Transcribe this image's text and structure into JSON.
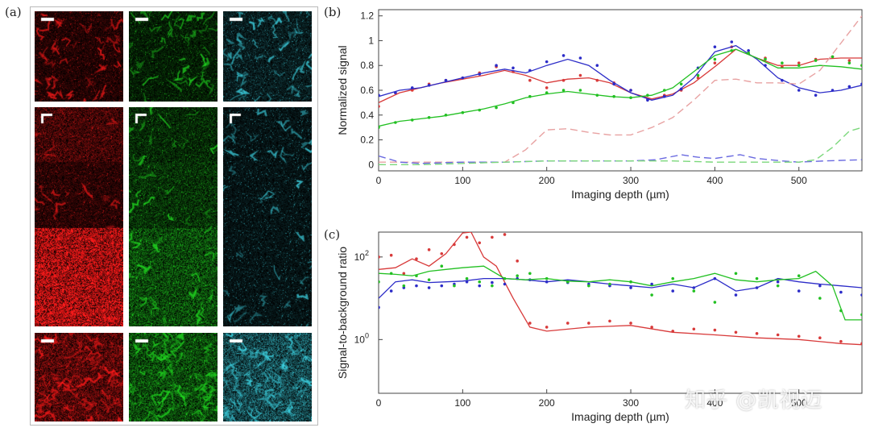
{
  "labels": {
    "a": "(a)",
    "b": "(b)",
    "c": "(c)"
  },
  "watermark": "知乎 @凯视迈",
  "image_panel": {
    "colors": {
      "red": "#ff1a1a",
      "green": "#22e022",
      "cyan": "#3fd8e8"
    }
  },
  "chart_data": [
    {
      "type": "line",
      "xlabel": "Imaging depth (µm)",
      "ylabel": "Normalized signal",
      "xlim": [
        0,
        575
      ],
      "ylim": [
        -0.05,
        1.25
      ],
      "xticks": [
        0,
        100,
        200,
        300,
        400,
        500
      ],
      "yticks": [
        0,
        0.2,
        0.4,
        0.6,
        0.8,
        1,
        1.2
      ],
      "ytick_labels": [
        "0",
        "0.2",
        "0.4",
        "0.6",
        "0.8",
        "1",
        "1.2"
      ],
      "grid": false,
      "series": [
        {
          "color": "#d83a3a",
          "style": "solid",
          "x": [
            0,
            25,
            50,
            75,
            100,
            125,
            150,
            175,
            200,
            225,
            250,
            275,
            300,
            325,
            350,
            375,
            400,
            425,
            450,
            475,
            500,
            525,
            550,
            575
          ],
          "y": [
            0.5,
            0.58,
            0.62,
            0.66,
            0.69,
            0.72,
            0.76,
            0.72,
            0.66,
            0.69,
            0.7,
            0.66,
            0.58,
            0.53,
            0.57,
            0.66,
            0.79,
            0.93,
            0.86,
            0.8,
            0.8,
            0.85,
            0.86,
            0.86
          ]
        },
        {
          "color": "#d83a3a",
          "style": "dots",
          "x": [
            0,
            20,
            40,
            60,
            80,
            100,
            120,
            140,
            160,
            180,
            200,
            220,
            240,
            260,
            280,
            300,
            320,
            340,
            360,
            380,
            400,
            420,
            440,
            460,
            480,
            500,
            520,
            540,
            560,
            575
          ],
          "y": [
            0.47,
            0.58,
            0.6,
            0.65,
            0.68,
            0.7,
            0.74,
            0.79,
            0.75,
            0.68,
            0.62,
            0.68,
            0.72,
            0.68,
            0.66,
            0.6,
            0.53,
            0.56,
            0.6,
            0.7,
            0.82,
            0.95,
            0.9,
            0.86,
            0.79,
            0.82,
            0.85,
            0.87,
            0.84,
            0.8
          ]
        },
        {
          "color": "#2c2cc8",
          "style": "solid",
          "x": [
            0,
            25,
            50,
            75,
            100,
            125,
            150,
            175,
            200,
            225,
            250,
            275,
            300,
            325,
            350,
            375,
            400,
            425,
            450,
            475,
            500,
            525,
            550,
            575
          ],
          "y": [
            0.55,
            0.6,
            0.62,
            0.66,
            0.7,
            0.74,
            0.77,
            0.74,
            0.8,
            0.85,
            0.8,
            0.68,
            0.58,
            0.52,
            0.56,
            0.7,
            0.91,
            0.96,
            0.85,
            0.7,
            0.62,
            0.58,
            0.6,
            0.64
          ]
        },
        {
          "color": "#2c2cc8",
          "style": "dots",
          "x": [
            0,
            20,
            40,
            60,
            80,
            100,
            120,
            140,
            160,
            180,
            200,
            220,
            240,
            260,
            280,
            300,
            320,
            340,
            360,
            380,
            400,
            420,
            440,
            460,
            480,
            500,
            520,
            540,
            560,
            575
          ],
          "y": [
            0.56,
            0.58,
            0.62,
            0.64,
            0.68,
            0.7,
            0.73,
            0.8,
            0.78,
            0.76,
            0.83,
            0.88,
            0.86,
            0.8,
            0.65,
            0.6,
            0.52,
            0.55,
            0.61,
            0.78,
            0.95,
            0.99,
            0.92,
            0.8,
            0.68,
            0.6,
            0.56,
            0.6,
            0.63,
            0.65
          ]
        },
        {
          "color": "#22c022",
          "style": "solid",
          "x": [
            0,
            25,
            50,
            75,
            100,
            125,
            150,
            175,
            200,
            225,
            250,
            275,
            300,
            325,
            350,
            375,
            400,
            425,
            450,
            475,
            500,
            525,
            550,
            575
          ],
          "y": [
            0.31,
            0.35,
            0.37,
            0.39,
            0.42,
            0.45,
            0.49,
            0.54,
            0.57,
            0.59,
            0.57,
            0.55,
            0.54,
            0.56,
            0.62,
            0.75,
            0.88,
            0.93,
            0.86,
            0.78,
            0.78,
            0.8,
            0.79,
            0.77
          ]
        },
        {
          "color": "#22c022",
          "style": "dots",
          "x": [
            0,
            20,
            40,
            60,
            80,
            100,
            120,
            140,
            160,
            180,
            200,
            220,
            240,
            260,
            280,
            300,
            320,
            340,
            360,
            380,
            400,
            420,
            440,
            460,
            480,
            500,
            520,
            540,
            560,
            575
          ],
          "y": [
            0.3,
            0.34,
            0.36,
            0.38,
            0.4,
            0.42,
            0.44,
            0.46,
            0.5,
            0.55,
            0.58,
            0.6,
            0.6,
            0.56,
            0.55,
            0.54,
            0.56,
            0.6,
            0.65,
            0.72,
            0.85,
            0.92,
            0.9,
            0.85,
            0.82,
            0.8,
            0.84,
            0.87,
            0.82,
            0.8
          ]
        },
        {
          "color": "#e8a2a2",
          "style": "dashed",
          "x": [
            0,
            50,
            100,
            150,
            175,
            200,
            225,
            250,
            275,
            300,
            325,
            350,
            375,
            400,
            425,
            450,
            475,
            500,
            525,
            550,
            575
          ],
          "y": [
            0.02,
            0.02,
            0.02,
            0.02,
            0.12,
            0.28,
            0.29,
            0.26,
            0.24,
            0.24,
            0.3,
            0.38,
            0.52,
            0.68,
            0.69,
            0.66,
            0.66,
            0.65,
            0.76,
            0.98,
            1.2
          ]
        },
        {
          "color": "#6a6ae0",
          "style": "dashed",
          "x": [
            0,
            25,
            50,
            100,
            150,
            200,
            250,
            300,
            330,
            360,
            380,
            400,
            430,
            450,
            480,
            500,
            530,
            575
          ],
          "y": [
            0.07,
            0.02,
            0.01,
            0.02,
            0.02,
            0.03,
            0.03,
            0.03,
            0.04,
            0.08,
            0.06,
            0.05,
            0.08,
            0.05,
            0.03,
            0.02,
            0.03,
            0.04
          ]
        },
        {
          "color": "#7cd87c",
          "style": "dashed",
          "x": [
            0,
            50,
            100,
            150,
            200,
            250,
            300,
            350,
            400,
            450,
            500,
            520,
            540,
            560,
            575
          ],
          "y": [
            0.0,
            0.0,
            0.01,
            0.02,
            0.03,
            0.03,
            0.03,
            0.03,
            0.02,
            0.02,
            0.02,
            0.04,
            0.14,
            0.27,
            0.3
          ]
        }
      ]
    },
    {
      "type": "line",
      "xlabel": "Imaging depth (µm)",
      "ylabel": "Signal-to-background ratio",
      "xlim": [
        0,
        575
      ],
      "ylim": [
        0.05,
        400
      ],
      "yscale": "log",
      "xticks": [
        0,
        100,
        200,
        300,
        400,
        500
      ],
      "yticks": [
        1,
        100
      ],
      "ytick_labels": [
        "10^0",
        "10^2"
      ],
      "grid": false,
      "series": [
        {
          "color": "#d83a3a",
          "style": "solid",
          "x": [
            0,
            20,
            40,
            60,
            80,
            100,
            110,
            125,
            140,
            160,
            180,
            200,
            250,
            300,
            350,
            400,
            450,
            500,
            550,
            575
          ],
          "y": [
            50,
            55,
            90,
            60,
            120,
            380,
            400,
            100,
            60,
            10,
            2.0,
            1.6,
            2.0,
            2.2,
            1.5,
            1.3,
            1.1,
            1.0,
            0.8,
            0.75
          ]
        },
        {
          "color": "#d83a3a",
          "style": "dots",
          "x": [
            0,
            15,
            30,
            45,
            60,
            75,
            90,
            105,
            120,
            135,
            150,
            165,
            180,
            200,
            225,
            250,
            275,
            300,
            325,
            350,
            375,
            400,
            425,
            450,
            475,
            500,
            525,
            550,
            575
          ],
          "y": [
            100,
            110,
            40,
            90,
            150,
            120,
            200,
            300,
            220,
            300,
            350,
            80,
            2.5,
            2.0,
            2.5,
            2.5,
            2.8,
            2.5,
            2.0,
            1.6,
            1.8,
            1.7,
            1.5,
            1.4,
            1.3,
            1.2,
            1.1,
            0.9,
            0.8
          ]
        },
        {
          "color": "#2c2cc8",
          "style": "solid",
          "x": [
            0,
            20,
            40,
            60,
            80,
            100,
            125,
            150,
            175,
            200,
            225,
            250,
            275,
            300,
            325,
            350,
            375,
            400,
            425,
            450,
            475,
            500,
            525,
            550,
            575
          ],
          "y": [
            10,
            25,
            28,
            24,
            25,
            26,
            30,
            30,
            28,
            25,
            28,
            25,
            22,
            20,
            18,
            22,
            18,
            30,
            15,
            18,
            30,
            25,
            22,
            20,
            18
          ]
        },
        {
          "color": "#2c2cc8",
          "style": "dots",
          "x": [
            0,
            15,
            30,
            45,
            60,
            75,
            90,
            105,
            120,
            135,
            150,
            165,
            180,
            200,
            225,
            250,
            275,
            300,
            325,
            350,
            375,
            400,
            425,
            450,
            475,
            500,
            525,
            550,
            575
          ],
          "y": [
            6,
            15,
            18,
            20,
            18,
            20,
            22,
            25,
            20,
            24,
            22,
            30,
            28,
            25,
            24,
            22,
            20,
            18,
            22,
            15,
            18,
            30,
            12,
            18,
            25,
            15,
            20,
            14,
            12
          ]
        },
        {
          "color": "#22c022",
          "style": "solid",
          "x": [
            0,
            20,
            40,
            60,
            80,
            100,
            125,
            150,
            175,
            200,
            225,
            250,
            275,
            300,
            325,
            350,
            375,
            400,
            425,
            450,
            475,
            500,
            520,
            540,
            555,
            575
          ],
          "y": [
            40,
            38,
            35,
            45,
            50,
            55,
            60,
            30,
            28,
            30,
            26,
            25,
            28,
            25,
            20,
            25,
            30,
            40,
            28,
            25,
            28,
            30,
            45,
            20,
            3,
            3
          ]
        },
        {
          "color": "#22c022",
          "style": "dots",
          "x": [
            0,
            15,
            30,
            45,
            60,
            75,
            90,
            105,
            120,
            135,
            150,
            165,
            180,
            200,
            225,
            250,
            275,
            300,
            325,
            350,
            375,
            400,
            425,
            450,
            475,
            500,
            525,
            550,
            575
          ],
          "y": [
            25,
            40,
            20,
            35,
            28,
            60,
            20,
            30,
            25,
            20,
            30,
            35,
            40,
            30,
            25,
            20,
            22,
            25,
            12,
            30,
            15,
            8,
            40,
            30,
            20,
            35,
            10,
            5,
            4
          ]
        }
      ]
    }
  ]
}
